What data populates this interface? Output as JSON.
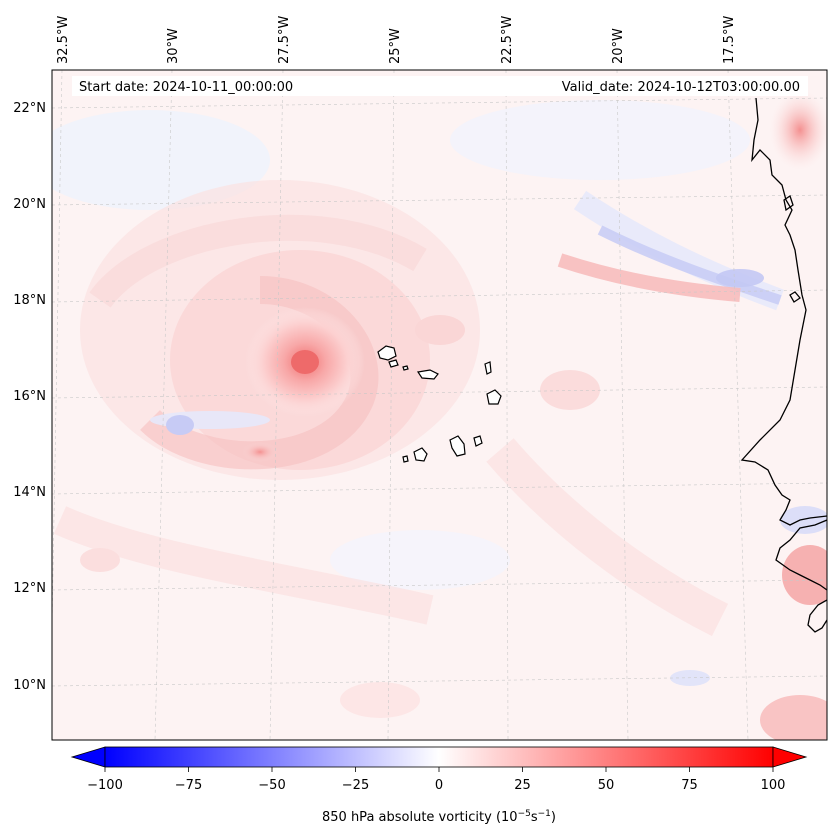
{
  "map": {
    "start_date": "Start date: 2024-10-11_00:00:00",
    "valid_date": "Valid_date: 2024-10-12T03:00:00.00",
    "lon_labels": [
      "32.5°W",
      "30°W",
      "27.5°W",
      "25°W",
      "22.5°W",
      "20°W",
      "17.5°W"
    ],
    "lat_labels": [
      "22°N",
      "20°N",
      "18°N",
      "16°N",
      "14°N",
      "12°N",
      "10°N"
    ]
  },
  "colorbar": {
    "label": "850 hPa absolute vorticity (10",
    "label_exp1": "−5",
    "label_mid": "s",
    "label_exp2": "−1",
    "label_end": ")",
    "ticks": [
      "−100",
      "−75",
      "−50",
      "−25",
      "0",
      "25",
      "50",
      "75",
      "100"
    ],
    "min": -100,
    "max": 100,
    "colors": {
      "negative": "#0000ff",
      "zero": "#ffffff",
      "positive": "#ff0000"
    }
  },
  "features": {
    "vortex_center": {
      "lon": "27.5°W",
      "lat": "16.6°N"
    }
  }
}
